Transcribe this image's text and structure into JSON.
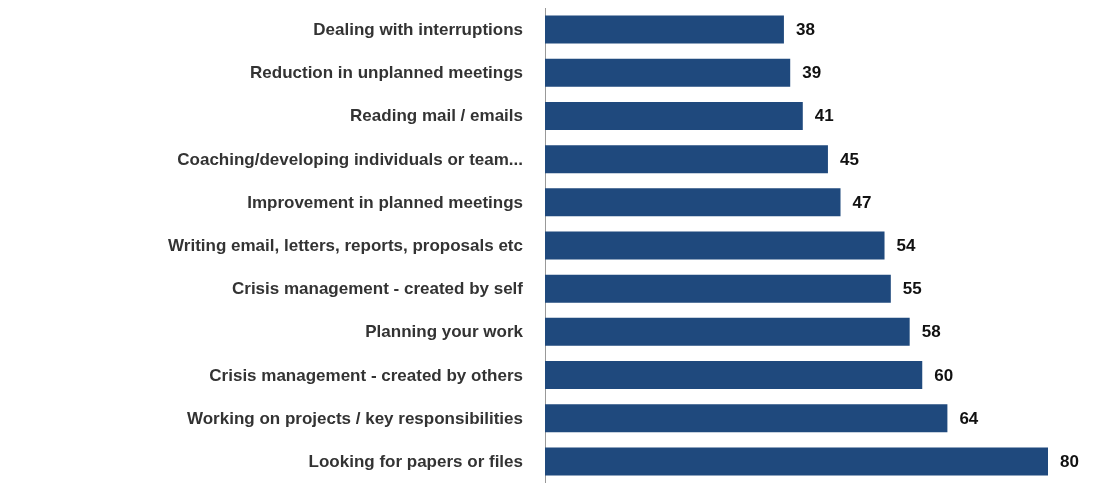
{
  "chart_data": {
    "type": "bar",
    "orientation": "horizontal",
    "data_labels": true,
    "color": "#1f497d",
    "categories": [
      "Dealing with interruptions",
      "Reduction in unplanned meetings",
      "Reading mail / emails",
      "Coaching/developing individuals or team...",
      "Improvement in planned meetings",
      "Writing email, letters, reports, proposals etc",
      "Crisis management - created by self",
      "Planning your work",
      "Crisis management - created by others",
      "Working on projects / key responsibilities",
      "Looking for papers or files"
    ],
    "values": [
      38,
      39,
      41,
      45,
      47,
      54,
      55,
      58,
      60,
      64,
      80
    ]
  }
}
